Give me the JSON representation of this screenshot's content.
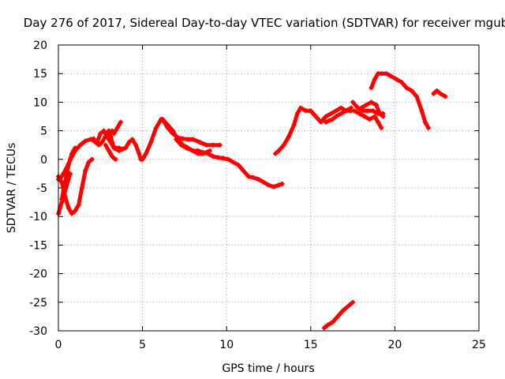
{
  "chart_data": {
    "type": "scatter",
    "title": "Day 276 of 2017, Sidereal Day-to-day VTEC variation (SDTVAR) for receiver mgub",
    "xlabel": "GPS time / hours",
    "ylabel": "SDTVAR / TECUs",
    "xlim": [
      0,
      25
    ],
    "ylim": [
      -30,
      20
    ],
    "x_ticks": [
      0,
      5,
      10,
      15,
      20,
      25
    ],
    "y_ticks": [
      -30,
      -25,
      -20,
      -15,
      -10,
      -5,
      0,
      5,
      10,
      15,
      20
    ],
    "grid": true,
    "legend": "none",
    "marker": "+",
    "colors": {
      "series": "#ff0000"
    },
    "series": [
      {
        "x": [
          0.0,
          0.2,
          0.4,
          0.6,
          0.8,
          1.0,
          1.3,
          1.6,
          1.9,
          2.1
        ],
        "y": [
          -3.5,
          -3.0,
          -2.0,
          -0.8,
          0.5,
          1.5,
          2.5,
          3.2,
          3.5,
          3.6
        ]
      },
      {
        "x": [
          0.0,
          0.1,
          0.2,
          0.3,
          0.4,
          0.5,
          0.6,
          0.7
        ],
        "y": [
          -9.5,
          -8.5,
          -7.5,
          -6.5,
          -5.5,
          -4.5,
          -3.5,
          -2.5
        ]
      },
      {
        "x": [
          0.0,
          0.2,
          0.4,
          0.6,
          0.8,
          1.0,
          1.2,
          1.4,
          1.6,
          1.8,
          2.0
        ],
        "y": [
          -3.0,
          -4.0,
          -6.5,
          -8.5,
          -9.5,
          -9.0,
          -8.0,
          -5.0,
          -2.0,
          -0.5,
          0.0
        ]
      },
      {
        "x": [
          0.2,
          0.3,
          0.4,
          0.5,
          0.6,
          0.7,
          0.8,
          0.9,
          1.0
        ],
        "y": [
          -7.0,
          -5.5,
          -4.0,
          -2.5,
          -1.0,
          0.0,
          1.0,
          1.5,
          2.0
        ]
      },
      {
        "x": [
          2.0,
          2.2,
          2.4,
          2.6,
          2.8,
          3.0,
          3.1,
          3.2,
          3.3
        ],
        "y": [
          3.5,
          3.0,
          2.5,
          3.0,
          4.0,
          5.0,
          4.0,
          3.0,
          2.0
        ]
      },
      {
        "x": [
          2.3,
          2.5,
          2.7,
          3.0,
          3.3,
          3.6,
          4.0
        ],
        "y": [
          3.0,
          4.5,
          5.0,
          3.5,
          2.0,
          1.5,
          2.0
        ]
      },
      {
        "x": [
          2.8,
          3.0,
          3.1,
          3.2,
          3.3,
          3.4
        ],
        "y": [
          2.5,
          1.5,
          1.0,
          0.5,
          0.2,
          0.0
        ]
      },
      {
        "x": [
          3.2,
          3.3,
          3.4,
          3.5,
          3.6,
          3.7
        ],
        "y": [
          5.0,
          4.5,
          5.0,
          5.5,
          6.0,
          6.5
        ]
      },
      {
        "x": [
          3.4,
          3.6,
          3.8,
          4.0,
          4.2,
          4.4,
          4.6,
          4.8,
          4.9,
          5.0,
          5.2,
          5.5,
          5.8,
          6.1,
          6.3,
          6.5,
          6.8,
          7.1,
          7.4,
          7.7,
          8.0,
          8.4,
          8.8,
          9.2,
          9.6
        ],
        "y": [
          2.0,
          2.0,
          1.8,
          2.0,
          3.0,
          3.5,
          2.5,
          1.0,
          0.0,
          0.0,
          1.0,
          3.0,
          5.5,
          7.0,
          6.5,
          5.5,
          4.5,
          3.8,
          3.6,
          3.5,
          3.5,
          3.0,
          2.5,
          2.5,
          2.5
        ]
      },
      {
        "x": [
          6.2,
          6.5,
          6.8,
          7.1,
          7.4,
          7.7,
          8.0,
          8.3,
          8.6,
          8.9,
          9.2,
          9.5,
          9.8,
          10.1,
          10.4,
          10.7,
          11.0,
          11.3,
          11.6,
          11.9,
          12.2,
          12.5,
          12.8,
          13.1,
          13.3
        ],
        "y": [
          7.0,
          6.0,
          5.0,
          3.5,
          2.5,
          2.0,
          1.5,
          1.5,
          1.2,
          1.0,
          0.5,
          0.3,
          0.2,
          0.0,
          -0.5,
          -1.0,
          -2.0,
          -3.0,
          -3.2,
          -3.5,
          -4.0,
          -4.5,
          -4.8,
          -4.5,
          -4.3
        ]
      },
      {
        "x": [
          7.0,
          7.3,
          7.6,
          8.0,
          8.3,
          8.6,
          9.0
        ],
        "y": [
          3.5,
          2.5,
          2.0,
          1.5,
          1.0,
          1.0,
          1.5
        ]
      },
      {
        "x": [
          12.9,
          13.1,
          13.4,
          13.7,
          14.0,
          14.2,
          14.4,
          14.7,
          15.0,
          15.3,
          15.6,
          15.9,
          16.2,
          16.5,
          16.8,
          17.1,
          17.4
        ],
        "y": [
          1.0,
          1.5,
          2.5,
          4.0,
          6.0,
          8.0,
          9.0,
          8.5,
          8.5,
          7.5,
          6.5,
          7.5,
          8.0,
          8.5,
          9.0,
          8.5,
          8.5
        ]
      },
      {
        "x": [
          15.9,
          16.1,
          16.3,
          16.5,
          16.8,
          17.1,
          17.4
        ],
        "y": [
          6.5,
          6.8,
          7.0,
          7.5,
          8.0,
          8.5,
          9.0
        ]
      },
      {
        "x": [
          15.8,
          16.0,
          16.3,
          16.6,
          16.9,
          17.1,
          17.3,
          17.5
        ],
        "y": [
          -29.5,
          -29.0,
          -28.5,
          -27.5,
          -26.5,
          -26.0,
          -25.5,
          -25.0
        ]
      },
      {
        "x": [
          17.5,
          17.8,
          18.1,
          18.4,
          18.7,
          19.0,
          19.3
        ],
        "y": [
          10.0,
          9.0,
          8.5,
          8.5,
          8.5,
          8.0,
          8.0
        ]
      },
      {
        "x": [
          17.6,
          17.9,
          18.2,
          18.5,
          18.8,
          19.0,
          19.2
        ],
        "y": [
          8.5,
          8.0,
          7.5,
          7.0,
          7.5,
          6.5,
          5.5
        ]
      },
      {
        "x": [
          18.0,
          18.3,
          18.6,
          18.9,
          19.1,
          19.3
        ],
        "y": [
          9.0,
          9.5,
          10.0,
          9.5,
          8.0,
          7.5
        ]
      },
      {
        "x": [
          18.6,
          18.8,
          19.0,
          19.2,
          19.5,
          19.8,
          20.1,
          20.4,
          20.7,
          21.0,
          21.3,
          21.6,
          21.8,
          22.0
        ],
        "y": [
          12.5,
          14.0,
          15.0,
          15.0,
          15.0,
          14.5,
          14.0,
          13.5,
          12.5,
          12.0,
          11.0,
          8.5,
          6.5,
          5.5
        ]
      },
      {
        "x": [
          22.3,
          22.5,
          22.7,
          23.0
        ],
        "y": [
          11.5,
          12.0,
          11.5,
          11.0
        ]
      }
    ]
  }
}
